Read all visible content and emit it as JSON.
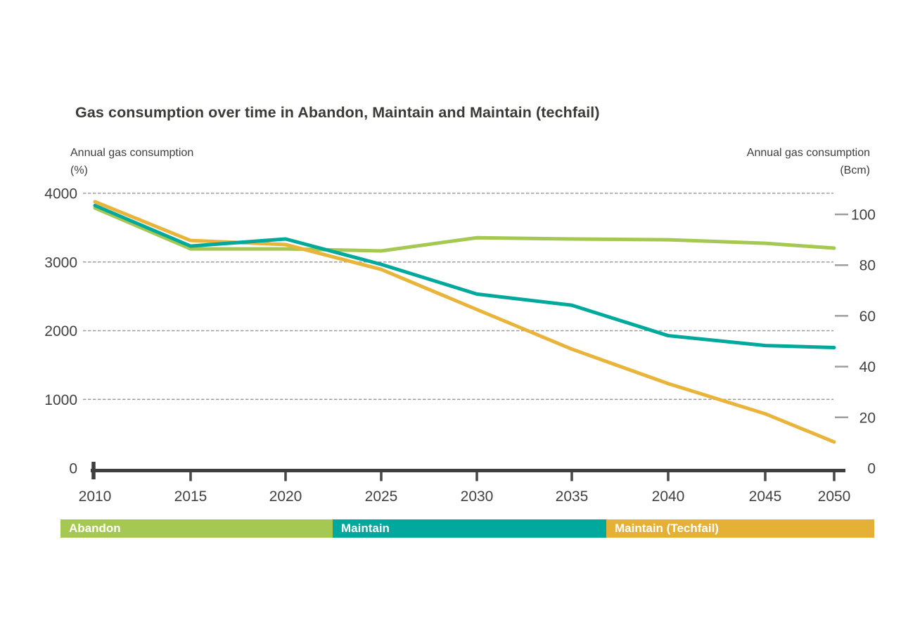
{
  "title": "Gas consumption over time in Abandon, Maintain and Maintain (techfail)",
  "axis_left": {
    "caption": [
      "Annual gas consumption",
      "(%)"
    ]
  },
  "axis_right": {
    "caption": [
      "Annual gas consumption",
      "(Bcm)"
    ]
  },
  "legend": {
    "items": [
      {
        "label": "Abandon",
        "color": "#a5c852"
      },
      {
        "label": "Maintain",
        "color": "#00a99c"
      },
      {
        "label": "Maintain (Techfail)",
        "color": "#e4b136"
      }
    ]
  },
  "chart_data": {
    "type": "line",
    "title": "Gas consumption over time in Abandon, Maintain and Maintain (techfail)",
    "x": [
      2010,
      2015,
      2020,
      2025,
      2030,
      2035,
      2040,
      2045,
      2050
    ],
    "xlabel": "",
    "series": [
      {
        "name": "Abandon",
        "color": "#a5c852",
        "values_bcm": [
          102.5,
          86.4,
          86.4,
          85.6,
          90.8,
          90.3,
          90.0,
          88.6,
          86.7
        ],
        "values_pct": [
          3784,
          3190,
          3190,
          3160,
          3352,
          3334,
          3323,
          3271,
          3201
        ]
      },
      {
        "name": "Maintain",
        "color": "#00a99c",
        "values_bcm": [
          103.5,
          87.5,
          90.3,
          80.3,
          68.6,
          64.2,
          52.2,
          48.3,
          47.5
        ],
        "values_pct": [
          3821,
          3230,
          3334,
          2965,
          2533,
          2370,
          1927,
          1783,
          1754
        ]
      },
      {
        "name": "Maintain (Techfail)",
        "color": "#e8b43a",
        "values_bcm": [
          105.0,
          89.7,
          88.1,
          78.3,
          62.5,
          46.9,
          33.3,
          21.4,
          10.3
        ],
        "values_pct": [
          3877,
          3312,
          3253,
          2891,
          2308,
          1732,
          1229,
          790,
          380
        ]
      }
    ],
    "y_left": {
      "label": "Annual gas consumption (%)",
      "ticks": [
        0,
        1000,
        2000,
        3000,
        4000
      ],
      "range": [
        0,
        4000
      ]
    },
    "y_right": {
      "label": "Annual gas consumption (Bcm)",
      "ticks": [
        0,
        20,
        40,
        60,
        80,
        100
      ],
      "range": [
        0,
        108.3
      ]
    },
    "grid": "horizontal-dashed-at-left-ticks",
    "legend_position": "bottom-bar",
    "plotted_on": "right-axis-bcm"
  }
}
